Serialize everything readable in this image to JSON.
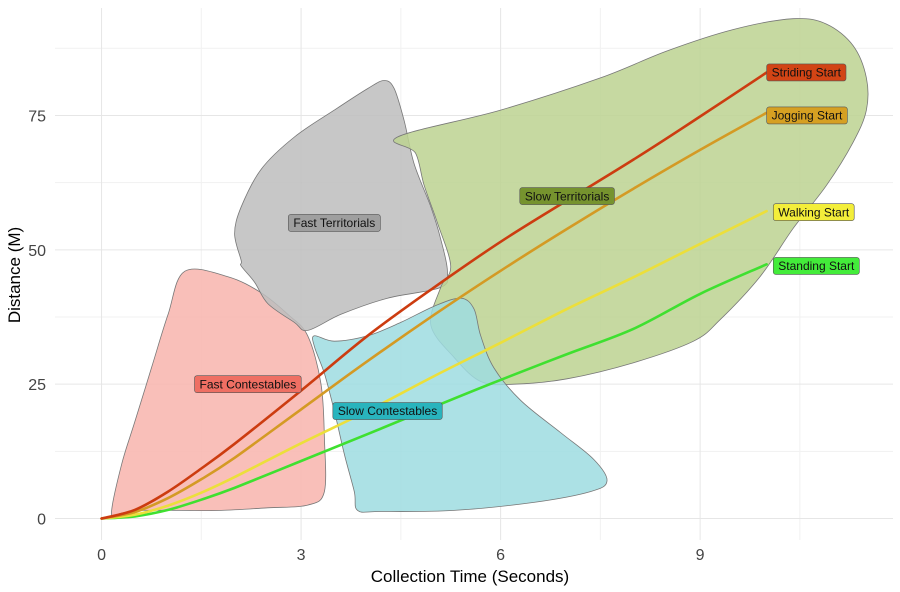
{
  "chart_data": {
    "type": "line",
    "title": "",
    "xlabel": "Collection Time (Seconds)",
    "ylabel": "Distance (M)",
    "xlim": [
      -0.7,
      11.9
    ],
    "ylim": [
      -4,
      95
    ],
    "xticks": [
      0,
      3,
      6,
      9
    ],
    "yticks": [
      0,
      25,
      50,
      75
    ],
    "grid": true,
    "zones": [
      {
        "name": "Fast Contestables",
        "color": "#f8b4ad",
        "label_at": [
          2.2,
          25
        ],
        "polygon": [
          [
            0.15,
            1
          ],
          [
            0.3,
            10
          ],
          [
            0.5,
            18
          ],
          [
            0.75,
            28
          ],
          [
            1.0,
            38
          ],
          [
            1.25,
            46
          ],
          [
            1.9,
            45
          ],
          [
            2.4,
            42
          ],
          [
            2.8,
            38
          ],
          [
            3.1,
            34
          ],
          [
            3.3,
            25
          ],
          [
            3.35,
            15
          ],
          [
            3.35,
            5
          ],
          [
            3.1,
            2.5
          ],
          [
            2.5,
            2
          ],
          [
            1.8,
            1.5
          ],
          [
            1.2,
            1.5
          ],
          [
            0.6,
            1.5
          ],
          [
            0.3,
            1
          ]
        ]
      },
      {
        "name": "Fast Territorials",
        "color": "#bdbdbd",
        "label_at": [
          3.5,
          55
        ],
        "polygon": [
          [
            2.1,
            48
          ],
          [
            2.0,
            53
          ],
          [
            2.1,
            58
          ],
          [
            2.4,
            65
          ],
          [
            2.9,
            71
          ],
          [
            3.5,
            76
          ],
          [
            4.0,
            80
          ],
          [
            4.25,
            81.5
          ],
          [
            4.4,
            80
          ],
          [
            4.55,
            74
          ],
          [
            4.7,
            66
          ],
          [
            4.95,
            58
          ],
          [
            5.1,
            52
          ],
          [
            5.2,
            46
          ],
          [
            5.1,
            43
          ],
          [
            4.3,
            41
          ],
          [
            3.6,
            38
          ],
          [
            3.1,
            35
          ],
          [
            2.9,
            36.5
          ],
          [
            2.5,
            40
          ],
          [
            2.3,
            44
          ],
          [
            2.1,
            47
          ]
        ]
      },
      {
        "name": "Slow Territorials",
        "color": "#bcd290",
        "label_at": [
          7.0,
          60
        ],
        "polygon": [
          [
            4.45,
            71
          ],
          [
            6.0,
            76
          ],
          [
            7.5,
            82
          ],
          [
            8.5,
            87
          ],
          [
            9.5,
            91
          ],
          [
            10.4,
            93
          ],
          [
            10.9,
            92
          ],
          [
            11.3,
            88
          ],
          [
            11.5,
            82
          ],
          [
            11.5,
            76
          ],
          [
            11.3,
            70
          ],
          [
            10.9,
            62
          ],
          [
            10.4,
            54
          ],
          [
            9.9,
            45
          ],
          [
            9.3,
            37
          ],
          [
            8.9,
            33
          ],
          [
            8.0,
            29
          ],
          [
            7.0,
            26
          ],
          [
            6.2,
            25
          ],
          [
            5.7,
            25.5
          ],
          [
            5.3,
            30
          ],
          [
            4.95,
            36
          ],
          [
            5.1,
            43
          ],
          [
            5.25,
            47
          ],
          [
            5.05,
            55
          ],
          [
            4.85,
            62
          ],
          [
            4.72,
            68
          ]
        ]
      },
      {
        "name": "Slow Contestables",
        "color": "#9ddce0",
        "label_at": [
          4.3,
          20
        ],
        "polygon": [
          [
            3.2,
            34
          ],
          [
            3.5,
            33
          ],
          [
            4.0,
            34
          ],
          [
            4.5,
            36.5
          ],
          [
            5.0,
            39.5
          ],
          [
            5.4,
            41
          ],
          [
            5.6,
            39
          ],
          [
            5.7,
            34
          ],
          [
            5.9,
            28
          ],
          [
            6.3,
            22
          ],
          [
            6.9,
            16
          ],
          [
            7.4,
            11
          ],
          [
            7.6,
            7
          ],
          [
            7.35,
            5
          ],
          [
            6.5,
            3
          ],
          [
            5.3,
            1.5
          ],
          [
            4.2,
            1.3
          ],
          [
            3.85,
            1.5
          ],
          [
            3.8,
            5
          ],
          [
            3.65,
            12
          ],
          [
            3.5,
            20
          ],
          [
            3.35,
            27
          ],
          [
            3.2,
            32
          ]
        ]
      }
    ],
    "series": [
      {
        "name": "Striding Start",
        "color": "#cc3c10",
        "x": [
          0,
          0.5,
          1,
          1.5,
          2,
          3,
          4,
          5,
          6,
          7,
          8,
          9,
          10
        ],
        "y": [
          0,
          1.6,
          5.0,
          9.3,
          13.9,
          23.8,
          34.0,
          43.0,
          51.5,
          59.2,
          66.8,
          74.8,
          83.0
        ]
      },
      {
        "name": "Jogging Start",
        "color": "#d49a24",
        "x": [
          0,
          0.5,
          1,
          1.5,
          2,
          3,
          4,
          5,
          6,
          7,
          8,
          9,
          10
        ],
        "y": [
          0,
          1.2,
          3.8,
          7.3,
          11.3,
          20.3,
          29.3,
          37.9,
          46.1,
          53.9,
          61.4,
          68.6,
          75.5
        ]
      },
      {
        "name": "Walking Start",
        "color": "#ecdf3b",
        "x": [
          0,
          0.5,
          1,
          1.5,
          2,
          3,
          4,
          5,
          6,
          7,
          8,
          9,
          10
        ],
        "y": [
          0,
          0.7,
          2.4,
          4.8,
          7.7,
          14.0,
          20.0,
          26.5,
          32.7,
          39.0,
          44.9,
          51.1,
          57.2
        ]
      },
      {
        "name": "Standing Start",
        "color": "#3fe030",
        "x": [
          0,
          0.5,
          1,
          1.5,
          2,
          3,
          4,
          5,
          6,
          7,
          8,
          9,
          10
        ],
        "y": [
          0,
          0.4,
          1.6,
          3.5,
          5.7,
          10.7,
          15.7,
          20.8,
          25.8,
          30.6,
          35.3,
          41.8,
          47.3
        ]
      }
    ],
    "series_labels": [
      {
        "name": "Striding Start",
        "at": [
          10.0,
          83
        ]
      },
      {
        "name": "Jogging Start",
        "at": [
          10.0,
          75
        ]
      },
      {
        "name": "Walking Start",
        "at": [
          10.1,
          57
        ]
      },
      {
        "name": "Standing Start",
        "at": [
          10.1,
          47
        ]
      }
    ],
    "colors": {
      "background": "#ffffff",
      "grid": "#e6e6e6",
      "zone_label_fill": {
        "Fast Contestables": "#ef6f63",
        "Fast Territorials": "#9f9f9f",
        "Slow Territorials": "#76932e",
        "Slow Contestables": "#29b4bd"
      },
      "series_label_fill": {
        "Striding Start": "#d24415",
        "Jogging Start": "#d6a022",
        "Walking Start": "#f3ee3a",
        "Standing Start": "#43ec3a"
      }
    }
  }
}
